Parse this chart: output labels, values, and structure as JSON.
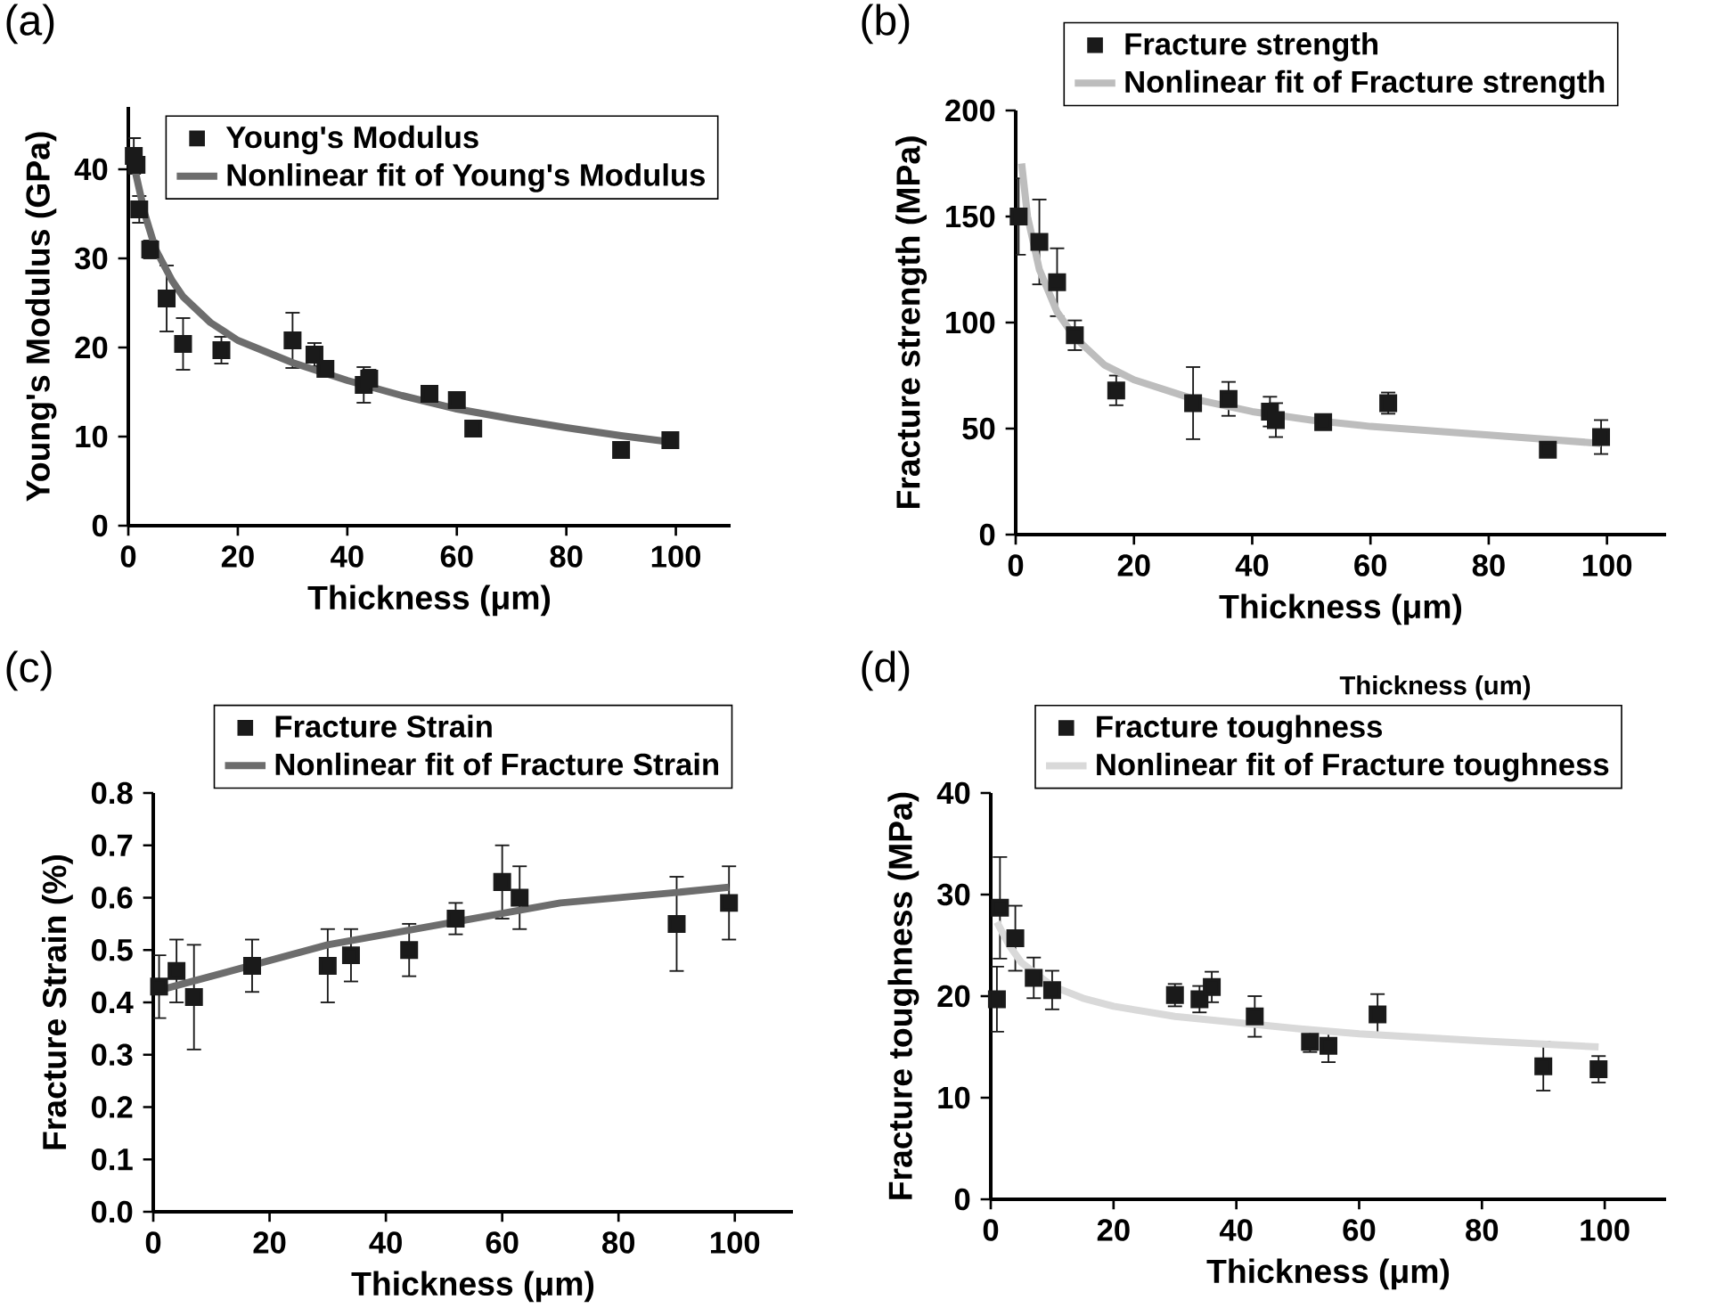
{
  "chart_data": [
    {
      "type": "scatter",
      "title": "(a)",
      "xlabel": "Thickness (μm)",
      "ylabel": "Young's Modulus (GPa)",
      "xlim": [
        0,
        110
      ],
      "ylim": [
        0,
        47
      ],
      "xticks": [
        0,
        20,
        40,
        60,
        80,
        100
      ],
      "yticks": [
        0,
        10,
        20,
        30,
        40
      ],
      "legend": "top right",
      "marker": "square",
      "series": [
        {
          "name": "Young's Modulus",
          "color": "#1a1a1a",
          "x": [
            1,
            1.5,
            2,
            4,
            7,
            10,
            17,
            30,
            34,
            36,
            43,
            44,
            55,
            60,
            63,
            90,
            99
          ],
          "values": [
            41.5,
            40.5,
            35.5,
            31,
            25.5,
            20.4,
            19.7,
            20.8,
            19.2,
            17.6,
            15.8,
            16.5,
            14.8,
            14.1,
            10.9,
            8.5,
            9.6
          ],
          "errors": [
            2,
            null,
            1.5,
            1,
            3.7,
            2.9,
            1.5,
            3.1,
            1.3,
            null,
            2,
            1,
            null,
            null,
            null,
            null,
            null
          ]
        },
        {
          "name": "Nonlinear fit of Young's Modulus",
          "type": "line",
          "marker": "none",
          "line_style": "solid",
          "color": "#6d6d6d",
          "x": [
            1,
            3,
            5,
            8,
            10,
            15,
            20,
            30,
            40,
            50,
            60,
            70,
            80,
            90,
            99
          ],
          "values": [
            40.5,
            35,
            31,
            27.5,
            25.7,
            22.8,
            20.8,
            18.3,
            16.3,
            14.6,
            13.1,
            12,
            11,
            10.1,
            9.4
          ]
        }
      ]
    },
    {
      "type": "scatter",
      "title": "(b)",
      "xlabel": "Thickness (μm)",
      "ylabel": "Fracture strength (MPa)",
      "xlim": [
        0,
        110
      ],
      "ylim": [
        0,
        200
      ],
      "xticks": [
        0,
        20,
        40,
        60,
        80,
        100
      ],
      "yticks": [
        0,
        50,
        100,
        150,
        200
      ],
      "legend": "top",
      "marker": "square",
      "series": [
        {
          "name": "Fracture strength",
          "color": "#1a1a1a",
          "x": [
            0.5,
            4,
            7,
            10,
            17,
            30,
            36,
            43,
            44,
            52,
            63,
            90,
            99
          ],
          "values": [
            150,
            138,
            119,
            94,
            68,
            62,
            64,
            58,
            54,
            53,
            62,
            40,
            46
          ],
          "errors": [
            18,
            20,
            16,
            7,
            7,
            17,
            8,
            7,
            8,
            null,
            5,
            3,
            8
          ]
        },
        {
          "name": "Nonlinear fit of Fracture strength",
          "type": "line",
          "marker": "none",
          "line_style": "solid",
          "color": "#bdbdbd",
          "x": [
            1,
            2,
            4,
            7,
            10,
            15,
            20,
            30,
            40,
            50,
            60,
            80,
            99
          ],
          "values": [
            175,
            150,
            125,
            105,
            93,
            80,
            73,
            64,
            58,
            54,
            51,
            47,
            43
          ]
        }
      ]
    },
    {
      "type": "scatter",
      "title": "(c)",
      "xlabel": "Thickness (μm)",
      "ylabel": "Fracture Strain (%)",
      "xlim": [
        0,
        110
      ],
      "ylim": [
        0,
        0.8
      ],
      "xticks": [
        0,
        20,
        40,
        60,
        80,
        100
      ],
      "yticks": [
        {
          "value": 0,
          "label": "0.0"
        },
        0.1,
        0.2,
        0.3,
        0.4,
        0.5,
        0.6,
        0.7,
        0.8
      ],
      "legend": "top",
      "marker": "square",
      "series": [
        {
          "name": "Fracture Strain",
          "color": "#1a1a1a",
          "x": [
            1,
            4,
            7,
            17,
            30,
            34,
            44,
            52,
            60,
            63,
            90,
            99
          ],
          "values": [
            0.43,
            0.46,
            0.41,
            0.47,
            0.47,
            0.49,
            0.5,
            0.56,
            0.63,
            0.6,
            0.55,
            0.59
          ],
          "errors": [
            0.06,
            0.06,
            0.1,
            0.05,
            0.07,
            0.05,
            0.05,
            0.03,
            0.07,
            0.06,
            0.09,
            0.07
          ]
        },
        {
          "name": "Nonlinear fit of Fracture Strain",
          "type": "line",
          "marker": "none",
          "line_style": "solid",
          "color": "#6d6d6d",
          "x": [
            0,
            10,
            20,
            30,
            40,
            50,
            60,
            70,
            80,
            90,
            99
          ],
          "values": [
            0.42,
            0.45,
            0.48,
            0.51,
            0.53,
            0.55,
            0.57,
            0.59,
            0.6,
            0.61,
            0.62
          ]
        }
      ]
    },
    {
      "type": "scatter",
      "title": "(d)",
      "xlabel": "Thickness (μm)",
      "ylabel": "Fracture toughness (MPa)",
      "annotations": [
        "Thickness (um)"
      ],
      "xlim": [
        0,
        110
      ],
      "ylim": [
        0,
        40
      ],
      "xticks": [
        0,
        20,
        40,
        60,
        80,
        100
      ],
      "yticks": [
        0,
        10,
        20,
        30,
        40
      ],
      "legend": "top",
      "marker": "square",
      "series": [
        {
          "name": "Fracture toughness",
          "color": "#1a1a1a",
          "x": [
            1,
            1.5,
            4,
            7,
            10,
            30,
            34,
            36,
            43,
            52,
            55,
            63,
            90,
            99
          ],
          "values": [
            19.7,
            28.7,
            25.7,
            21.8,
            20.6,
            20.1,
            19.7,
            20.9,
            18,
            15.5,
            15.1,
            18.2,
            13.1,
            12.8
          ],
          "errors": [
            3.2,
            5,
            3.2,
            2,
            1.9,
            1.1,
            1.3,
            1.5,
            2,
            1,
            1.6,
            2,
            2.4,
            1.3
          ]
        },
        {
          "name": "Nonlinear fit of Fracture toughness",
          "type": "line",
          "marker": "none",
          "line_style": "solid",
          "color": "#d9d9d9",
          "x": [
            1,
            3,
            5,
            10,
            15,
            20,
            30,
            40,
            50,
            60,
            80,
            99
          ],
          "values": [
            27.3,
            25,
            23.3,
            21,
            19.8,
            19,
            18,
            17.4,
            16.8,
            16.3,
            15.6,
            15
          ]
        }
      ]
    }
  ]
}
